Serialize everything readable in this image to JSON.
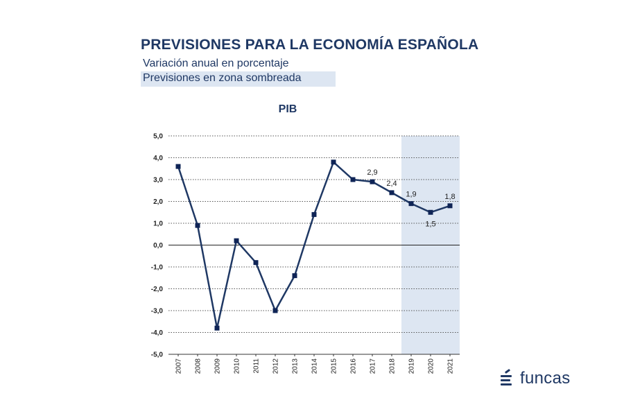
{
  "header": {
    "title": "PREVISIONES PARA LA ECONOMÍA ESPAÑOLA",
    "subtitle": "Variación anual en porcentaje",
    "shaded_note": "Previsiones en zona sombreada"
  },
  "logo": {
    "text": "funcas",
    "icon": "funcas-logo-icon"
  },
  "colors": {
    "line": "#1f3864",
    "shade": "#dde6f2",
    "text": "#1f3864"
  },
  "chart_data": {
    "type": "line",
    "title": "PIB",
    "xlabel": "",
    "ylabel": "",
    "categories": [
      "2007",
      "2008",
      "2009",
      "2010",
      "2011",
      "2012",
      "2013",
      "2014",
      "2015",
      "2016",
      "2017",
      "2018",
      "2019",
      "2020",
      "2021"
    ],
    "series": [
      {
        "values": [
          3.6,
          0.9,
          -3.8,
          0.2,
          -0.8,
          -3.0,
          -1.4,
          1.4,
          3.8,
          3.0,
          2.9,
          2.4,
          1.9,
          1.5,
          1.8
        ]
      }
    ],
    "ylim": [
      -5,
      5
    ],
    "yticks": [
      "-5,0",
      "-4,0",
      "-3,0",
      "-2,0",
      "-1,0",
      "0,0",
      "1,0",
      "2,0",
      "3,0",
      "4,0",
      "5,0"
    ],
    "data_labels": {
      "2017": "2,9",
      "2018": "2,4",
      "2019": "1,9",
      "2020": "1,5",
      "2021": "1,8"
    },
    "forecast_shaded_from": "2019",
    "grid": true,
    "legend": "none"
  }
}
